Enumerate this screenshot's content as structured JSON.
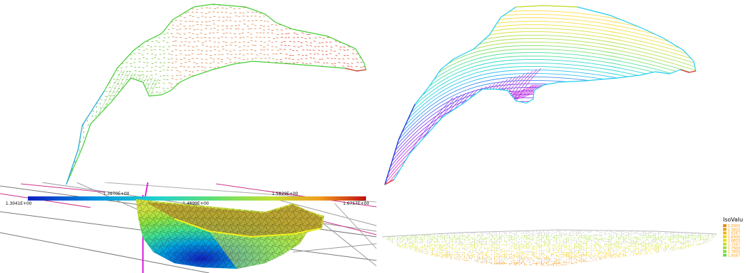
{
  "colorbar": {
    "upper_labels": [
      "1.3970E+00",
      "1.5829E+00"
    ],
    "lower_labels": [
      "1.3041E+00",
      "1.4899E+00",
      "1.6757E+00"
    ]
  },
  "isovalue_legend": {
    "title": "IsoValu",
    "values": [
      "1.5500",
      "1.5833",
      "1.6167",
      "1.6500",
      "1.6833",
      "1.7167",
      "1.7500",
      "1.7833",
      "1.8167"
    ]
  },
  "colors": {
    "colorbar_gradient": [
      "#1020c0",
      "#00b0e0",
      "#40e0a0",
      "#a0e040",
      "#f0c000",
      "#e06020",
      "#c01010"
    ],
    "mesh_green": "#40d040",
    "mesh_yellow": "#f0e020",
    "iso_orange": "#f08a00"
  }
}
